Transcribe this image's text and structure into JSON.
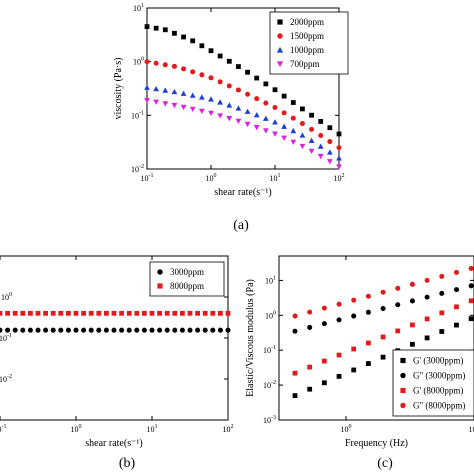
{
  "chart_data": [
    {
      "panel_label": "(a)",
      "type": "scatter",
      "xlabel": "shear rate(s⁻¹)",
      "ylabel": "viscosity (Pa·s)",
      "xscale": "log",
      "yscale": "log",
      "xlim": [
        0.1,
        100
      ],
      "ylim": [
        0.01,
        10
      ],
      "x_ticks": [
        {
          "v": 0.1,
          "b": "10",
          "e": "-1"
        },
        {
          "v": 1,
          "b": "10",
          "e": "0"
        },
        {
          "v": 10,
          "b": "10",
          "e": "1"
        },
        {
          "v": 100,
          "b": "10",
          "e": "2"
        }
      ],
      "y_ticks": [
        {
          "v": 0.01,
          "b": "10",
          "e": "-2"
        },
        {
          "v": 0.1,
          "b": "10",
          "e": "-1"
        },
        {
          "v": 1,
          "b": "10",
          "e": "0"
        },
        {
          "v": 10,
          "b": "10",
          "e": "1"
        }
      ],
      "legend_position": "top-right",
      "series": [
        {
          "name": "2000ppm",
          "marker": "square",
          "color": "#000000",
          "x_range": [
            0.1,
            100
          ],
          "n": 22,
          "anchors": [
            [
              0.1,
              4.5
            ],
            [
              0.2,
              3.9
            ],
            [
              0.5,
              2.5
            ],
            [
              1,
              1.6
            ],
            [
              3,
              0.75
            ],
            [
              10,
              0.3
            ],
            [
              30,
              0.12
            ],
            [
              100,
              0.045
            ]
          ]
        },
        {
          "name": "1500ppm",
          "marker": "circle",
          "color": "#e41a1c",
          "x_range": [
            0.1,
            100
          ],
          "n": 22,
          "anchors": [
            [
              0.1,
              1.0
            ],
            [
              0.3,
              0.8
            ],
            [
              1,
              0.5
            ],
            [
              3,
              0.28
            ],
            [
              10,
              0.14
            ],
            [
              30,
              0.065
            ],
            [
              100,
              0.025
            ]
          ]
        },
        {
          "name": "1000ppm",
          "marker": "triangle-up",
          "color": "#1f3fd1",
          "x_range": [
            0.1,
            100
          ],
          "n": 22,
          "anchors": [
            [
              0.1,
              0.33
            ],
            [
              0.3,
              0.27
            ],
            [
              1,
              0.2
            ],
            [
              3,
              0.13
            ],
            [
              10,
              0.075
            ],
            [
              30,
              0.04
            ],
            [
              100,
              0.016
            ]
          ]
        },
        {
          "name": "700ppm",
          "marker": "triangle-down",
          "color": "#e020e0",
          "x_range": [
            0.1,
            100
          ],
          "n": 22,
          "anchors": [
            [
              0.1,
              0.19
            ],
            [
              0.3,
              0.15
            ],
            [
              1,
              0.11
            ],
            [
              3,
              0.075
            ],
            [
              10,
              0.045
            ],
            [
              30,
              0.025
            ],
            [
              100,
              0.011
            ]
          ]
        }
      ]
    },
    {
      "panel_label": "(b)",
      "type": "scatter",
      "xlabel": "shear rate(s⁻¹)",
      "ylabel": "",
      "xscale": "log",
      "yscale": "log",
      "xlim": [
        0.1,
        100
      ],
      "ylim": [
        0.001,
        10
      ],
      "x_ticks": [
        {
          "v": 0.1,
          "b": "10",
          "e": "-1"
        },
        {
          "v": 1,
          "b": "10",
          "e": "0"
        },
        {
          "v": 10,
          "b": "10",
          "e": "1"
        },
        {
          "v": 100,
          "b": "10",
          "e": "2"
        }
      ],
      "y_ticks": [
        {
          "v": 0.01,
          "b": "10",
          "e": "-2"
        },
        {
          "v": 0.1,
          "b": "10",
          "e": "-1"
        },
        {
          "v": 1,
          "b": "10",
          "e": "0"
        }
      ],
      "legend_position": "top-right",
      "series": [
        {
          "name": "3000ppm",
          "marker": "circle",
          "color": "#000000",
          "x_range": [
            0.1,
            100
          ],
          "n": 31,
          "anchors": [
            [
              0.1,
              0.155
            ],
            [
              100,
              0.155
            ]
          ]
        },
        {
          "name": "8000ppm",
          "marker": "square",
          "color": "#e41a1c",
          "x_range": [
            0.1,
            100
          ],
          "n": 31,
          "anchors": [
            [
              0.1,
              0.4
            ],
            [
              100,
              0.4
            ]
          ]
        }
      ]
    },
    {
      "panel_label": "(c)",
      "type": "scatter",
      "xlabel": "Frequency (Hz)",
      "ylabel": "Elastic/Viscous modulus (Pa)",
      "xscale": "log",
      "yscale": "log",
      "xlim": [
        0.3,
        10
      ],
      "ylim": [
        0.001,
        50
      ],
      "x_ticks": [
        {
          "v": 1,
          "b": "10",
          "e": "0"
        },
        {
          "v": 10,
          "b": "10",
          "e": "1"
        }
      ],
      "y_ticks": [
        {
          "v": 0.001,
          "b": "10",
          "e": "-3"
        },
        {
          "v": 0.01,
          "b": "10",
          "e": "-2"
        },
        {
          "v": 0.1,
          "b": "10",
          "e": "-1"
        },
        {
          "v": 1,
          "b": "10",
          "e": "0"
        },
        {
          "v": 10,
          "b": "10",
          "e": "1"
        }
      ],
      "legend_position": "bottom-right",
      "series": [
        {
          "name": "G' (3000ppm)",
          "marker": "square",
          "color": "#000000",
          "x_range": [
            0.4,
            9.5
          ],
          "n": 13,
          "anchors": [
            [
              0.4,
              0.005
            ],
            [
              9.5,
              0.8
            ]
          ]
        },
        {
          "name": "G\" (3000ppm)",
          "marker": "circle",
          "color": "#000000",
          "x_range": [
            0.4,
            9.5
          ],
          "n": 13,
          "anchors": [
            [
              0.4,
              0.35
            ],
            [
              9.5,
              7
            ]
          ]
        },
        {
          "name": "G' (8000ppm)",
          "marker": "square",
          "color": "#e41a1c",
          "x_range": [
            0.4,
            9.5
          ],
          "n": 13,
          "anchors": [
            [
              0.4,
              0.022
            ],
            [
              9.5,
              2.6
            ]
          ]
        },
        {
          "name": "G\" (8000ppm)",
          "marker": "circle",
          "color": "#e41a1c",
          "x_range": [
            0.4,
            9.5
          ],
          "n": 13,
          "anchors": [
            [
              0.4,
              0.95
            ],
            [
              9.5,
              22
            ]
          ]
        }
      ]
    }
  ]
}
